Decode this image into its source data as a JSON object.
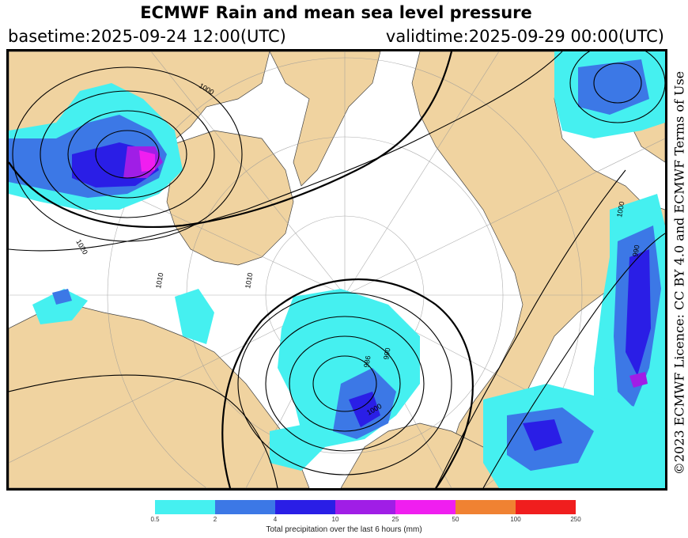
{
  "header": {
    "title": "ECMWF Rain and mean sea level pressure",
    "basetime": "basetime:2025-09-24 12:00(UTC)",
    "validtime": "validtime:2025-09-29 00:00(UTC)"
  },
  "licence": "©2023 ECMWF Licence: CC BY 4.0 and ECMWF Terms of Use",
  "map": {
    "isobar_labels": [
      "1000",
      "1020",
      "1010",
      "1010",
      "1000",
      "990",
      "986",
      "990",
      "1000"
    ],
    "colors": {
      "land": "#f0d3a0",
      "sea": "#ffffff",
      "isobar": "#000000",
      "grid": "#999999"
    }
  },
  "legend": {
    "label": "Total precipitation over the last 6 hours (mm)",
    "ticks": [
      "0.5",
      "2",
      "4",
      "10",
      "25",
      "50",
      "100",
      "250"
    ],
    "colors": [
      "#45f0f0",
      "#3c78e6",
      "#2a1ee6",
      "#a01ee6",
      "#f01ef0",
      "#f08232",
      "#f01e1e"
    ]
  }
}
